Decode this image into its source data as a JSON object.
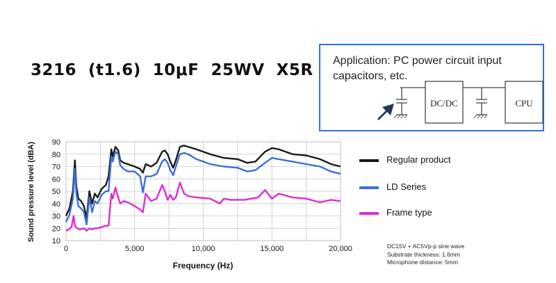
{
  "title": "3216  (t1.6)  10μF  25WV  X5R",
  "application": {
    "text": "Application: PC power circuit input capacitors, etc.",
    "dcdc_label": "DC/DC",
    "cpu_label": "CPU"
  },
  "colors": {
    "regular": "#1a1a1a",
    "ld": "#3a6fd8",
    "frame": "#e02ad8",
    "box_border": "#2f6fe0"
  },
  "notes": [
    "DC15V  + AC5Vp-p sine wave",
    "Substrate thickness: 1.6mm",
    "Microphone distance: 5mm"
  ],
  "chart_data": {
    "type": "line",
    "xlabel": "Frequency (Hz)",
    "ylabel": "Sound pressure level (dBA)",
    "xlim": [
      0,
      20000
    ],
    "ylim": [
      10,
      90
    ],
    "xticks": [
      0,
      5000,
      10000,
      15000,
      20000
    ],
    "xtick_labels": [
      "0",
      "5,000",
      "10,000",
      "15,000",
      "20,000"
    ],
    "yticks": [
      10,
      20,
      30,
      40,
      50,
      60,
      70,
      80,
      90
    ],
    "grid": true,
    "legend_position": "right",
    "series": [
      {
        "name": "Regular product",
        "color": "#1a1a1a",
        "x": [
          0,
          250,
          500,
          650,
          750,
          900,
          1100,
          1300,
          1500,
          1700,
          1900,
          2100,
          2300,
          2600,
          2900,
          3100,
          3300,
          3400,
          3600,
          3800,
          3950,
          4200,
          4500,
          5000,
          5400,
          5600,
          5800,
          6200,
          6600,
          7000,
          7200,
          7400,
          7600,
          7800,
          8000,
          8300,
          8600,
          8900,
          9500,
          10500,
          11500,
          12500,
          13200,
          13800,
          14500,
          15000,
          15500,
          16500,
          17500,
          18500,
          19300,
          20000
        ],
        "y": [
          30,
          36,
          50,
          75,
          54,
          44,
          42,
          38,
          28,
          50,
          40,
          48,
          45,
          52,
          55,
          62,
          84,
          78,
          86,
          83,
          75,
          73,
          72,
          70,
          68,
          65,
          72,
          70,
          73,
          82,
          83,
          80,
          74,
          69,
          75,
          86,
          87,
          86,
          84,
          80,
          77,
          76,
          73,
          74,
          82,
          85,
          84,
          80,
          79,
          76,
          72,
          70
        ]
      },
      {
        "name": "LD Series",
        "color": "#3a6fd8",
        "x": [
          0,
          250,
          500,
          650,
          750,
          900,
          1100,
          1300,
          1500,
          1700,
          1900,
          2100,
          2300,
          2600,
          2900,
          3100,
          3300,
          3400,
          3600,
          3800,
          3950,
          4200,
          4500,
          5000,
          5400,
          5600,
          5800,
          6200,
          6600,
          7000,
          7200,
          7400,
          7600,
          7800,
          8000,
          8300,
          8600,
          8900,
          9500,
          10500,
          11500,
          12500,
          13200,
          13800,
          14500,
          15000,
          15500,
          16500,
          17500,
          18500,
          19300,
          20000
        ],
        "y": [
          25,
          31,
          44,
          68,
          48,
          38,
          36,
          33,
          23,
          45,
          33,
          42,
          40,
          47,
          50,
          50,
          78,
          74,
          82,
          80,
          71,
          68,
          66,
          66,
          62,
          49,
          62,
          62,
          64,
          74,
          76,
          73,
          67,
          63,
          70,
          80,
          81,
          80,
          76,
          72,
          70,
          69,
          66,
          67,
          73,
          77,
          76,
          74,
          72,
          70,
          66,
          64
        ]
      },
      {
        "name": "Frame type",
        "color": "#e02ad8",
        "x": [
          0,
          200,
          400,
          550,
          650,
          800,
          1000,
          1300,
          1500,
          1700,
          1900,
          2100,
          2300,
          2600,
          2900,
          3100,
          3300,
          3400,
          3600,
          3800,
          3950,
          4200,
          4500,
          5000,
          5400,
          5600,
          5800,
          6200,
          6600,
          7000,
          7200,
          7400,
          7600,
          7800,
          8000,
          8300,
          8600,
          8900,
          9500,
          10500,
          11200,
          11500,
          12000,
          13000,
          14000,
          14500,
          15000,
          15500,
          16500,
          17500,
          18500,
          19300,
          20000
        ],
        "y": [
          18,
          19,
          21,
          30,
          22,
          20,
          19,
          20,
          18,
          20,
          19,
          20,
          20,
          21,
          22,
          22,
          48,
          44,
          53,
          45,
          40,
          42,
          41,
          38,
          35,
          33,
          48,
          42,
          44,
          55,
          50,
          43,
          47,
          43,
          45,
          57,
          48,
          46,
          45,
          44,
          40,
          44,
          43,
          43,
          45,
          51,
          44,
          48,
          45,
          44,
          41,
          43,
          42
        ]
      }
    ]
  }
}
